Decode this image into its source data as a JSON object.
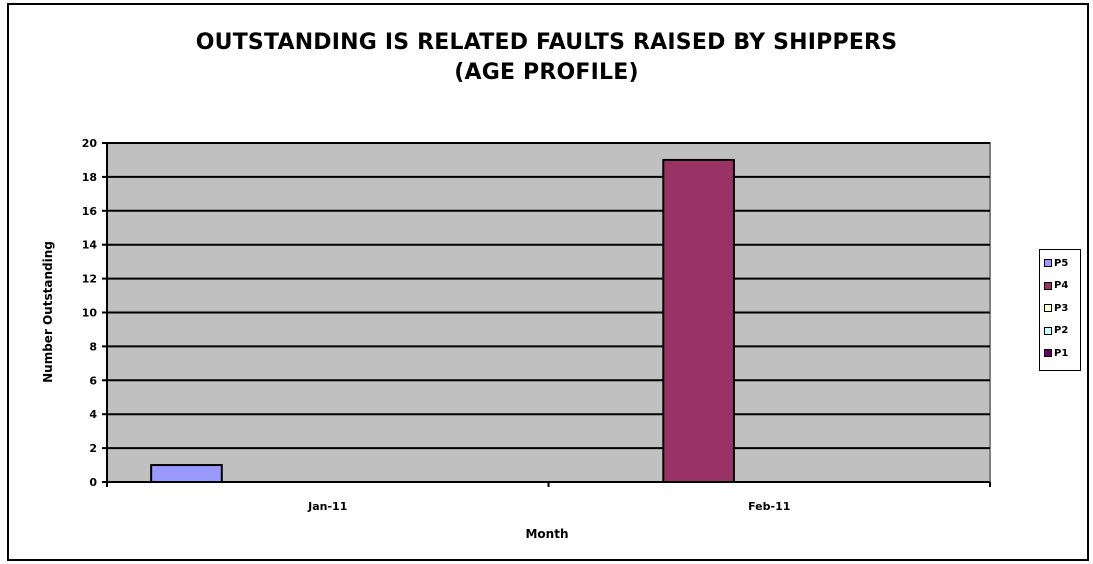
{
  "chart_data": {
    "type": "bar",
    "title_line1": "OUTSTANDING IS RELATED FAULTS RAISED BY SHIPPERS",
    "title_line2": "(AGE PROFILE)",
    "xlabel": "Month",
    "ylabel": "Number Outstanding",
    "categories": [
      "Jan-11",
      "Feb-11"
    ],
    "ylim": [
      0,
      20
    ],
    "yticks": [
      "0",
      "2",
      "4",
      "6",
      "8",
      "10",
      "12",
      "14",
      "16",
      "18",
      "20"
    ],
    "grid": true,
    "plot_background": "#c0c0c0",
    "legend_position": "right",
    "series": [
      {
        "name": "P5",
        "color": "#9999ff",
        "values": [
          1,
          0
        ]
      },
      {
        "name": "P4",
        "color": "#993366",
        "values": [
          0,
          19
        ]
      },
      {
        "name": "P3",
        "color": "#ffffcc",
        "values": [
          0,
          0
        ]
      },
      {
        "name": "P2",
        "color": "#ccffff",
        "values": [
          0,
          0
        ]
      },
      {
        "name": "P1",
        "color": "#660066",
        "values": [
          0,
          0
        ]
      }
    ]
  }
}
